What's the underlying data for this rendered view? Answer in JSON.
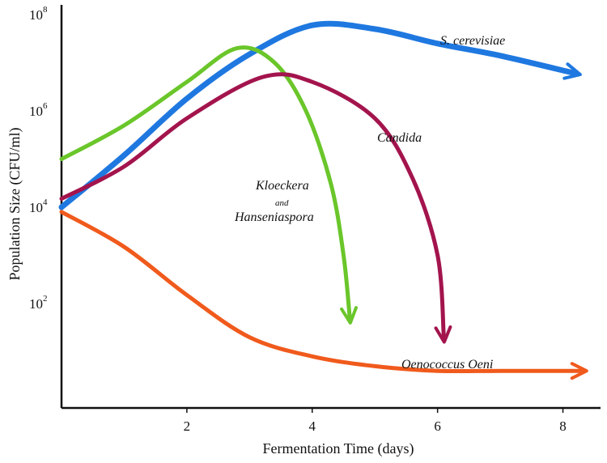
{
  "chart_data": {
    "type": "line",
    "xlabel": "Fermentation Time (days)",
    "ylabel": "Population Size (CFU/ml)",
    "x_ticks": [
      2,
      4,
      6,
      8
    ],
    "y_ticks": [
      {
        "base": "10",
        "exp": "2",
        "value": 100
      },
      {
        "base": "10",
        "exp": "4",
        "value": 10000
      },
      {
        "base": "10",
        "exp": "6",
        "value": 1000000
      },
      {
        "base": "10",
        "exp": "8",
        "value": 100000000
      }
    ],
    "y_scale": "log",
    "xlim": [
      0,
      8.6
    ],
    "ylim": [
      1,
      200000000
    ],
    "grid": false,
    "series": [
      {
        "name": "S. cerevisiae",
        "color": "#1f78e0",
        "points": [
          [
            0,
            10000
          ],
          [
            1,
            120000
          ],
          [
            2,
            1800000
          ],
          [
            3,
            15000000
          ],
          [
            4,
            60000000
          ],
          [
            5,
            50000000
          ],
          [
            6,
            25000000
          ],
          [
            7,
            14000000
          ],
          [
            8.2,
            6000000
          ]
        ]
      },
      {
        "name": "Kloeckera and Hanseniaspora",
        "color": "#6ac62a",
        "points": [
          [
            0,
            100000
          ],
          [
            1,
            500000
          ],
          [
            2,
            4000000
          ],
          [
            2.8,
            20000000
          ],
          [
            3.4,
            10000000
          ],
          [
            3.9,
            1000000
          ],
          [
            4.3,
            30000
          ],
          [
            4.5,
            1000
          ],
          [
            4.6,
            50
          ]
        ]
      },
      {
        "name": "Candida",
        "color": "#a3144d",
        "points": [
          [
            0,
            15000
          ],
          [
            1,
            70000
          ],
          [
            2,
            700000
          ],
          [
            3.2,
            5000000
          ],
          [
            4,
            4000000
          ],
          [
            5,
            700000
          ],
          [
            5.6,
            40000
          ],
          [
            6,
            1000
          ],
          [
            6.1,
            20
          ]
        ]
      },
      {
        "name": "Oenococcus Oeni",
        "color": "#f05a1c",
        "points": [
          [
            0,
            8000
          ],
          [
            1,
            1500
          ],
          [
            2,
            150
          ],
          [
            3,
            20
          ],
          [
            4,
            8
          ],
          [
            5,
            5
          ],
          [
            6,
            4
          ],
          [
            7,
            4
          ],
          [
            8.3,
            4
          ]
        ]
      }
    ]
  }
}
